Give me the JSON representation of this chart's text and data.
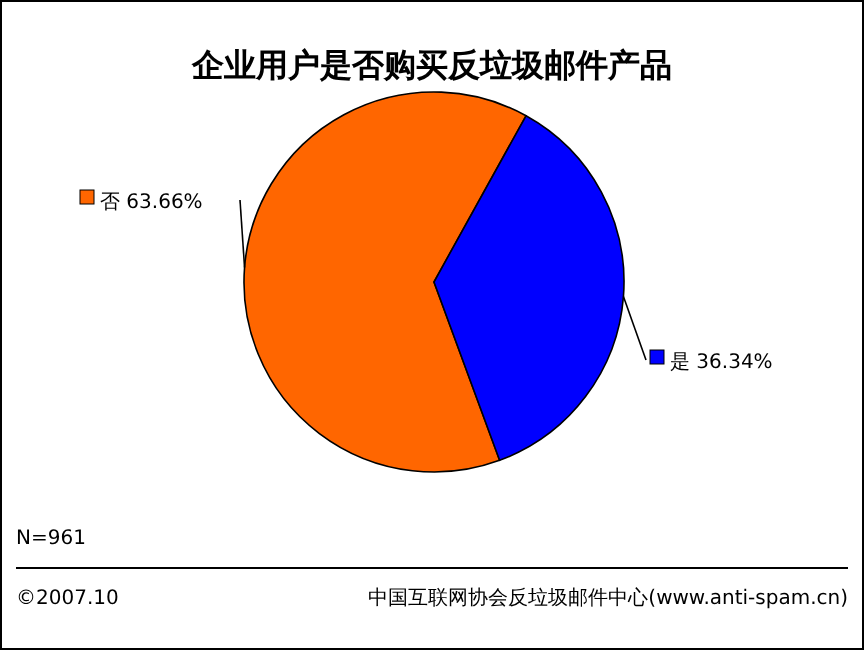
{
  "chart_data": {
    "type": "pie",
    "title": "企业用户是否购买反垃圾邮件产品",
    "categories": [
      "否",
      "是"
    ],
    "values": [
      63.66,
      36.34
    ],
    "colors": [
      "#ff6600",
      "#0000ff"
    ],
    "value_labels": [
      "63.66%",
      "36.34%"
    ],
    "legend": "left",
    "annotations": [
      "N=961",
      "©2007.10",
      "中国互联网协会反垃圾邮件中心(www.anti-spam.cn)"
    ]
  }
}
